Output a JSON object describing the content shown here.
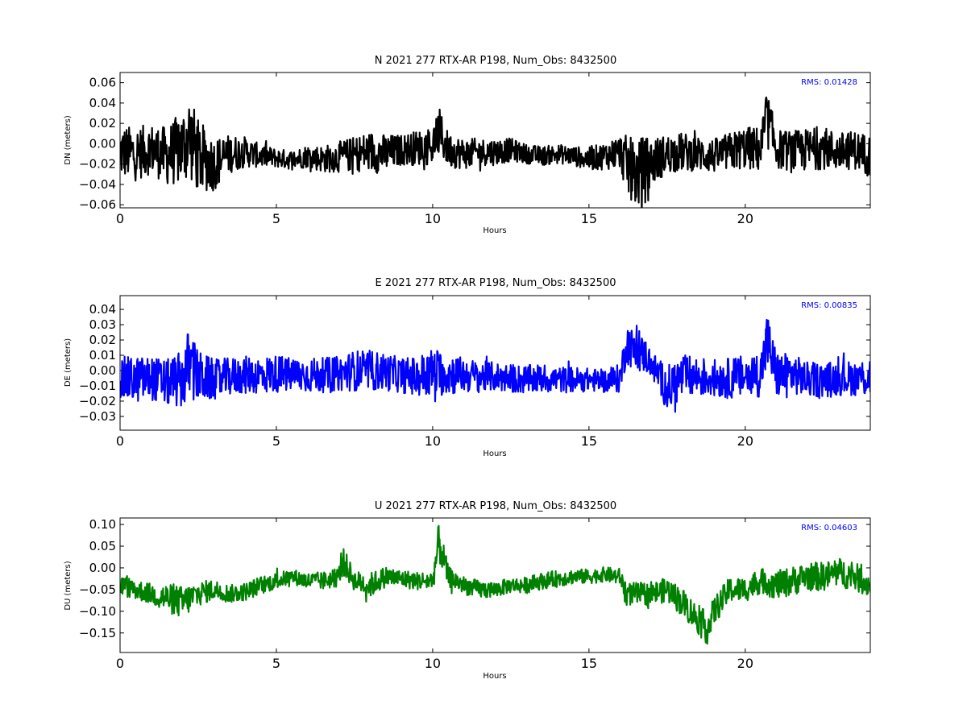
{
  "chart_data": [
    {
      "type": "line",
      "title": "N 2021 277 RTX-AR  P198, Num_Obs: 8432500",
      "xlabel": "Hours",
      "ylabel": "DN (meters)",
      "xlim": [
        0,
        24
      ],
      "ylim": [
        -0.063,
        0.07
      ],
      "xticks": [
        0,
        5,
        10,
        15,
        20
      ],
      "xtick_labels": [
        "0",
        "5",
        "10",
        "15",
        "20"
      ],
      "yticks": [
        -0.06,
        -0.04,
        -0.02,
        0.0,
        0.02,
        0.04,
        0.06
      ],
      "ytick_labels": [
        "−0.06",
        "−0.04",
        "−0.02",
        "0.00",
        "0.02",
        "0.04",
        "0.06"
      ],
      "annotation": "RMS:  0.01428",
      "grid": false,
      "color": "#000000",
      "series": [
        {
          "x": [
            0,
            0.5,
            1,
            1.5,
            2,
            2.2,
            2.5,
            3,
            3.5,
            4,
            4.5,
            5,
            5.5,
            6,
            6.5,
            7,
            7.5,
            8,
            8.5,
            9,
            9.5,
            10,
            10.2,
            10.5,
            11,
            11.5,
            12,
            12.5,
            13,
            13.5,
            14,
            14.5,
            15,
            15.5,
            16,
            16.2,
            16.5,
            16.8,
            17,
            17.5,
            18,
            18.5,
            19,
            19.5,
            20,
            20.5,
            20.7,
            21,
            21.5,
            22,
            22.5,
            23,
            23.5,
            24
          ],
          "y": [
            -0.008,
            -0.01,
            -0.005,
            -0.012,
            -0.004,
            0.008,
            -0.012,
            -0.02,
            -0.01,
            -0.008,
            -0.012,
            -0.014,
            -0.016,
            -0.012,
            -0.015,
            -0.013,
            -0.01,
            -0.008,
            -0.01,
            -0.006,
            -0.004,
            -0.002,
            0.012,
            -0.006,
            -0.01,
            -0.008,
            -0.008,
            -0.006,
            -0.01,
            -0.012,
            -0.01,
            -0.012,
            -0.015,
            -0.012,
            -0.008,
            -0.02,
            -0.03,
            -0.025,
            -0.018,
            -0.01,
            -0.008,
            -0.01,
            -0.012,
            -0.008,
            -0.004,
            -0.006,
            0.025,
            -0.005,
            -0.008,
            -0.006,
            -0.004,
            -0.008,
            -0.006,
            -0.012
          ],
          "amp": [
            0.028,
            0.028,
            0.026,
            0.03,
            0.04,
            0.045,
            0.038,
            0.028,
            0.02,
            0.016,
            0.012,
            0.01,
            0.01,
            0.012,
            0.014,
            0.016,
            0.018,
            0.022,
            0.02,
            0.016,
            0.018,
            0.02,
            0.025,
            0.018,
            0.016,
            0.014,
            0.014,
            0.012,
            0.01,
            0.01,
            0.01,
            0.01,
            0.012,
            0.014,
            0.018,
            0.03,
            0.035,
            0.035,
            0.025,
            0.02,
            0.02,
            0.018,
            0.018,
            0.02,
            0.022,
            0.024,
            0.03,
            0.02,
            0.022,
            0.022,
            0.022,
            0.02,
            0.02,
            0.022
          ]
        }
      ]
    },
    {
      "type": "line",
      "title": "E 2021 277 RTX-AR  P198, Num_Obs: 8432500",
      "xlabel": "Hours",
      "ylabel": "DE (meters)",
      "xlim": [
        0,
        24
      ],
      "ylim": [
        -0.039,
        0.049
      ],
      "xticks": [
        0,
        5,
        10,
        15,
        20
      ],
      "xtick_labels": [
        "0",
        "5",
        "10",
        "15",
        "20"
      ],
      "yticks": [
        -0.03,
        -0.02,
        -0.01,
        0.0,
        0.01,
        0.02,
        0.03,
        0.04
      ],
      "ytick_labels": [
        "−0.03",
        "−0.02",
        "−0.01",
        "0.00",
        "0.01",
        "0.02",
        "0.03",
        "0.04"
      ],
      "annotation": "RMS:  0.00835",
      "grid": false,
      "color": "#0000ff",
      "series": [
        {
          "x": [
            0,
            0.5,
            1,
            1.5,
            2,
            2.2,
            2.5,
            3,
            3.5,
            4,
            4.5,
            5,
            5.5,
            6,
            6.5,
            7,
            7.5,
            8,
            8.5,
            9,
            9.5,
            10,
            10.5,
            11,
            11.5,
            12,
            12.5,
            13,
            13.5,
            14,
            14.5,
            15,
            15.5,
            16,
            16.2,
            16.5,
            16.8,
            17,
            17.3,
            17.5,
            18,
            18.5,
            19,
            19.5,
            20,
            20.5,
            20.7,
            21,
            21.5,
            22,
            22.5,
            23,
            23.5,
            24
          ],
          "y": [
            -0.006,
            -0.006,
            -0.005,
            -0.008,
            -0.006,
            0.004,
            -0.004,
            -0.006,
            -0.004,
            -0.003,
            -0.003,
            -0.002,
            -0.003,
            -0.003,
            -0.003,
            -0.002,
            0.0,
            0.0,
            -0.001,
            -0.003,
            -0.004,
            -0.001,
            -0.002,
            -0.003,
            -0.004,
            -0.004,
            -0.005,
            -0.006,
            -0.005,
            -0.006,
            -0.006,
            -0.006,
            -0.007,
            -0.005,
            0.018,
            0.012,
            0.01,
            0.004,
            -0.005,
            -0.012,
            -0.004,
            -0.004,
            -0.005,
            -0.005,
            -0.004,
            -0.002,
            0.02,
            -0.003,
            -0.002,
            -0.006,
            -0.006,
            -0.005,
            -0.005,
            -0.004
          ],
          "amp": [
            0.016,
            0.016,
            0.015,
            0.016,
            0.02,
            0.026,
            0.018,
            0.014,
            0.013,
            0.013,
            0.013,
            0.013,
            0.012,
            0.012,
            0.012,
            0.012,
            0.014,
            0.014,
            0.013,
            0.012,
            0.014,
            0.017,
            0.015,
            0.012,
            0.011,
            0.01,
            0.01,
            0.01,
            0.01,
            0.009,
            0.009,
            0.008,
            0.008,
            0.01,
            0.014,
            0.014,
            0.012,
            0.01,
            0.012,
            0.016,
            0.015,
            0.014,
            0.013,
            0.014,
            0.015,
            0.016,
            0.02,
            0.016,
            0.014,
            0.012,
            0.012,
            0.012,
            0.012,
            0.015
          ]
        }
      ]
    },
    {
      "type": "line",
      "title": "U 2021 277 RTX-AR  P198, Num_Obs: 8432500",
      "xlabel": "Hours",
      "ylabel": "DU (meters)",
      "xlim": [
        0,
        24
      ],
      "ylim": [
        -0.195,
        0.115
      ],
      "xticks": [
        0,
        5,
        10,
        15,
        20
      ],
      "xtick_labels": [
        "0",
        "5",
        "10",
        "15",
        "20"
      ],
      "yticks": [
        -0.15,
        -0.1,
        -0.05,
        0.0,
        0.05,
        0.1
      ],
      "ytick_labels": [
        "−0.15",
        "−0.10",
        "−0.05",
        "0.00",
        "0.05",
        "0.10"
      ],
      "annotation": "RMS:  0.04603",
      "grid": false,
      "color": "#008000",
      "series": [
        {
          "x": [
            0,
            0.5,
            1,
            1.5,
            2,
            2.5,
            3,
            3.5,
            4,
            4.5,
            5,
            5.5,
            6,
            6.5,
            7,
            7.1,
            7.5,
            8,
            8.5,
            9,
            9.5,
            10,
            10.2,
            10.5,
            11,
            11.5,
            12,
            12.5,
            13,
            13.5,
            14,
            14.5,
            15,
            15.5,
            16,
            16.2,
            16.5,
            17,
            17.5,
            18,
            18.5,
            18.8,
            19,
            19.5,
            20,
            20.5,
            21,
            21.5,
            22,
            22.5,
            23,
            23.5,
            24
          ],
          "y": [
            -0.04,
            -0.05,
            -0.06,
            -0.07,
            -0.08,
            -0.06,
            -0.05,
            -0.06,
            -0.055,
            -0.04,
            -0.03,
            -0.02,
            -0.03,
            -0.03,
            -0.02,
            0.02,
            -0.03,
            -0.04,
            -0.02,
            -0.025,
            -0.03,
            -0.03,
            0.06,
            -0.02,
            -0.04,
            -0.05,
            -0.05,
            -0.04,
            -0.04,
            -0.03,
            -0.025,
            -0.02,
            -0.02,
            -0.015,
            -0.02,
            -0.06,
            -0.06,
            -0.06,
            -0.05,
            -0.08,
            -0.12,
            -0.14,
            -0.1,
            -0.05,
            -0.05,
            -0.03,
            -0.04,
            -0.03,
            -0.02,
            -0.02,
            -0.01,
            -0.02,
            -0.04
          ],
          "amp": [
            0.025,
            0.025,
            0.025,
            0.035,
            0.04,
            0.03,
            0.025,
            0.022,
            0.022,
            0.022,
            0.02,
            0.018,
            0.02,
            0.022,
            0.025,
            0.035,
            0.025,
            0.03,
            0.025,
            0.022,
            0.022,
            0.025,
            0.05,
            0.025,
            0.022,
            0.022,
            0.02,
            0.018,
            0.02,
            0.02,
            0.02,
            0.018,
            0.018,
            0.018,
            0.02,
            0.028,
            0.028,
            0.028,
            0.03,
            0.035,
            0.035,
            0.04,
            0.035,
            0.03,
            0.03,
            0.03,
            0.035,
            0.035,
            0.035,
            0.035,
            0.035,
            0.035,
            0.03
          ]
        }
      ]
    }
  ]
}
